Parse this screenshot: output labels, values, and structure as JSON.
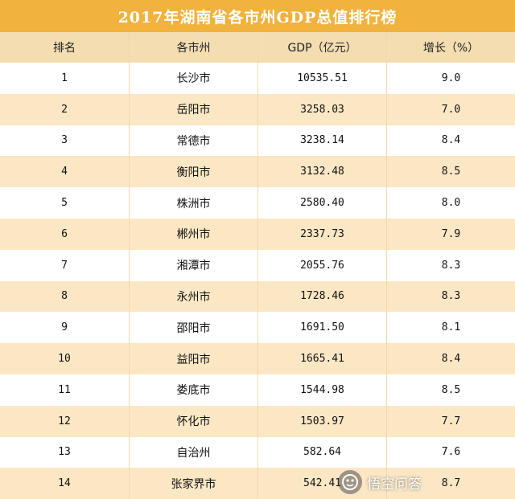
{
  "title": "2017年湖南省各市州GDP总值排行榜",
  "headers": [
    "排名",
    "各市州",
    "GDP（亿元）",
    "增长（%）"
  ],
  "rows": [
    {
      "rank": "1",
      "city": "长沙市",
      "gdp": "10535.51",
      "growth": "9.0"
    },
    {
      "rank": "2",
      "city": "岳阳市",
      "gdp": "3258.03",
      "growth": "7.0"
    },
    {
      "rank": "3",
      "city": "常德市",
      "gdp": "3238.14",
      "growth": "8.4"
    },
    {
      "rank": "4",
      "city": "衡阳市",
      "gdp": "3132.48",
      "growth": "8.5"
    },
    {
      "rank": "5",
      "city": "株洲市",
      "gdp": "2580.40",
      "growth": "8.0"
    },
    {
      "rank": "6",
      "city": "郴州市",
      "gdp": "2337.73",
      "growth": "7.9"
    },
    {
      "rank": "7",
      "city": "湘潭市",
      "gdp": "2055.76",
      "growth": "8.3"
    },
    {
      "rank": "8",
      "city": "永州市",
      "gdp": "1728.46",
      "growth": "8.3"
    },
    {
      "rank": "9",
      "city": "邵阳市",
      "gdp": "1691.50",
      "growth": "8.1"
    },
    {
      "rank": "10",
      "city": "益阳市",
      "gdp": "1665.41",
      "growth": "8.4"
    },
    {
      "rank": "11",
      "city": "娄底市",
      "gdp": "1544.98",
      "growth": "8.5"
    },
    {
      "rank": "12",
      "city": "怀化市",
      "gdp": "1503.97",
      "growth": "7.7"
    },
    {
      "rank": "13",
      "city": "自治州",
      "gdp": "582.64",
      "growth": "7.6"
    },
    {
      "rank": "14",
      "city": "张家界市",
      "gdp": "542.41",
      "growth": "8.7"
    }
  ],
  "watermark": {
    "text": "悟空问答",
    "icon": "wukong-logo-icon"
  },
  "colors": {
    "title_bg": "#f1b23e",
    "header_bg": "#f3ddb1",
    "stripe_bg": "#fbe7c4"
  }
}
